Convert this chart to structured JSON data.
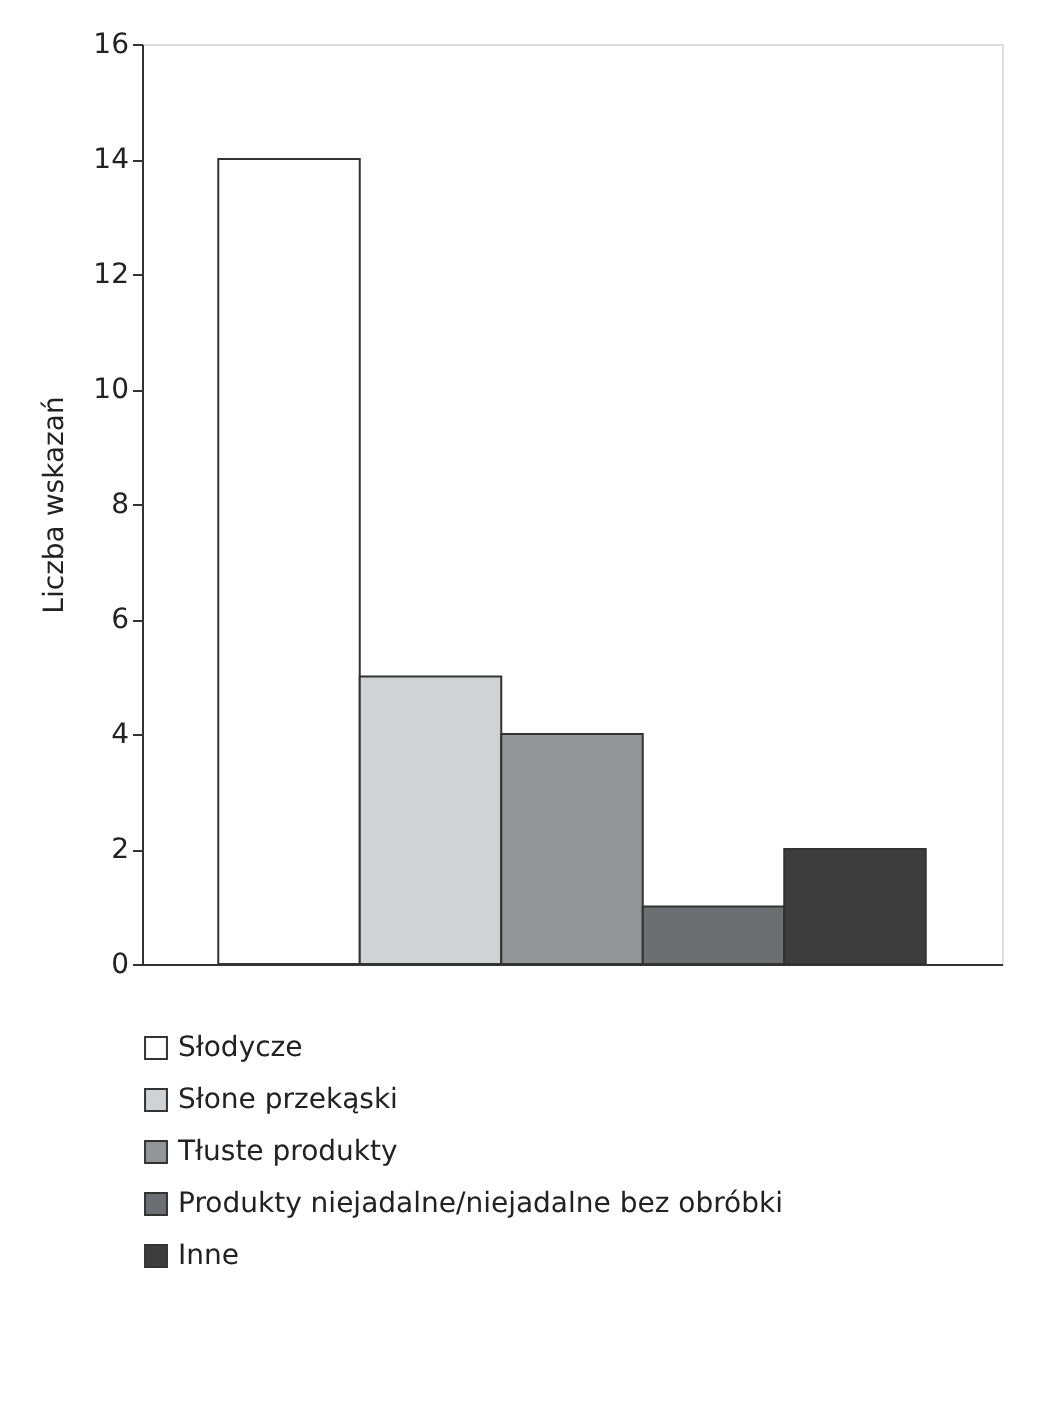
{
  "chart_data": {
    "type": "bar",
    "ylabel": "Liczba wskazań",
    "categories": [
      null
    ],
    "series": [
      {
        "name": "Słodycze",
        "color": "#ffffff",
        "values": [
          14
        ]
      },
      {
        "name": "Słone przekąski",
        "color": "#d1d2d4",
        "values": [
          5
        ]
      },
      {
        "name": "Tłuste produkty",
        "color": "#939598",
        "values": [
          4
        ]
      },
      {
        "name": "Produkty niejadalne/niejadalne bez obróbki",
        "color": "#6d6e71",
        "values": [
          1
        ]
      },
      {
        "name": "Inne",
        "color": "#3d3d3d",
        "values": [
          2
        ]
      }
    ],
    "ylim": [
      0,
      16
    ],
    "yticks": [
      0,
      2,
      4,
      6,
      8,
      10,
      12,
      14,
      16
    ],
    "grid": false,
    "legend": "bottom",
    "tick_labels": "y"
  }
}
